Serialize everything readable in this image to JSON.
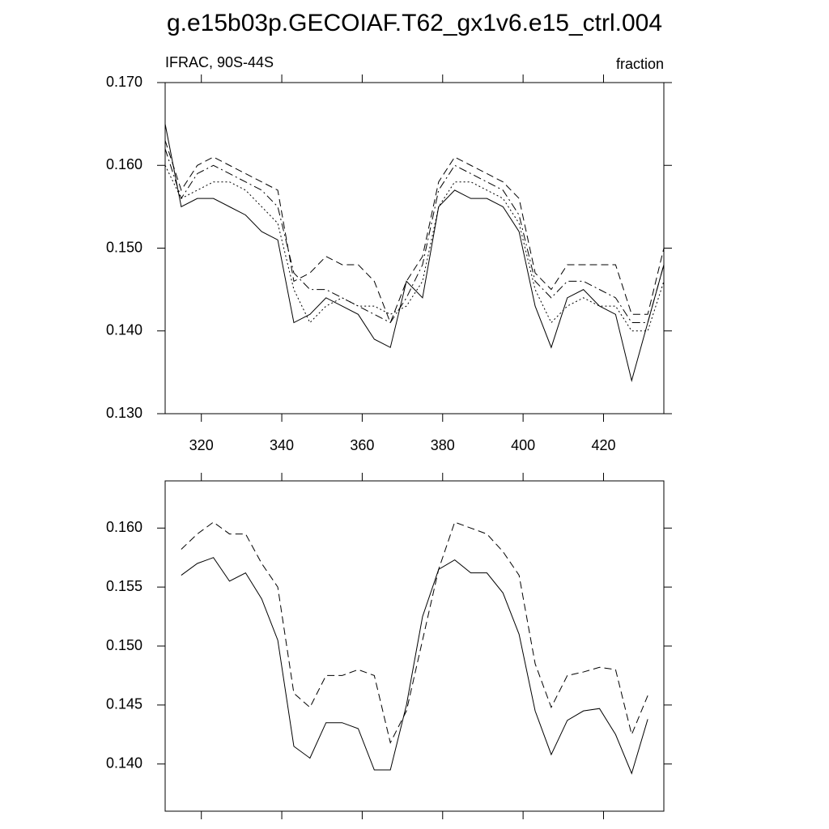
{
  "chart_data": [
    {
      "type": "line",
      "title": "g.e15b03p.GECOIAF.T62_gx1v6.e15_ctrl.004",
      "left_label": "IFRAC, 90S-44S",
      "right_label": "fraction",
      "x": [
        311,
        315,
        319,
        323,
        327,
        331,
        335,
        339,
        343,
        347,
        351,
        355,
        359,
        363,
        367,
        371,
        375,
        379,
        383,
        387,
        391,
        395,
        399,
        403,
        407,
        411,
        415,
        419,
        423,
        427,
        431,
        435
      ],
      "xlim": [
        311,
        435
      ],
      "xticks": [
        320,
        340,
        360,
        380,
        400,
        420
      ],
      "xtick_labels": true,
      "ylim": [
        0.13,
        0.17
      ],
      "yticks": [
        {
          "value": 0.13,
          "label": "0.130"
        },
        {
          "value": 0.14,
          "label": "0.140"
        },
        {
          "value": 0.15,
          "label": "0.150"
        },
        {
          "value": 0.16,
          "label": "0.160"
        },
        {
          "value": 0.17,
          "label": "0.170"
        }
      ],
      "series": [
        {
          "color": "#000000",
          "dash": "solid",
          "values": [
            0.165,
            0.155,
            0.156,
            0.156,
            0.155,
            0.154,
            0.152,
            0.151,
            0.141,
            0.142,
            0.144,
            0.143,
            0.142,
            0.139,
            0.138,
            0.146,
            0.144,
            0.155,
            0.157,
            0.156,
            0.156,
            0.155,
            0.152,
            0.143,
            0.138,
            0.144,
            0.145,
            0.143,
            0.142,
            0.134,
            0.141,
            0.148
          ]
        },
        {
          "color": "#000000",
          "dash": "dashed",
          "values": [
            0.163,
            0.157,
            0.16,
            0.161,
            0.16,
            0.159,
            0.158,
            0.157,
            0.146,
            0.147,
            0.149,
            0.148,
            0.148,
            0.146,
            0.141,
            0.146,
            0.149,
            0.158,
            0.161,
            0.16,
            0.159,
            0.158,
            0.156,
            0.147,
            0.145,
            0.148,
            0.148,
            0.148,
            0.148,
            0.142,
            0.142,
            0.15
          ]
        },
        {
          "color": "#000000",
          "dash": "dashdot",
          "values": [
            0.162,
            0.156,
            0.159,
            0.16,
            0.159,
            0.158,
            0.157,
            0.155,
            0.147,
            0.145,
            0.145,
            0.144,
            0.143,
            0.142,
            0.141,
            0.144,
            0.148,
            0.157,
            0.16,
            0.159,
            0.158,
            0.157,
            0.154,
            0.146,
            0.144,
            0.146,
            0.146,
            0.145,
            0.144,
            0.141,
            0.141,
            0.148
          ]
        },
        {
          "color": "#000000",
          "dash": "dotted",
          "values": [
            0.16,
            0.156,
            0.157,
            0.158,
            0.158,
            0.157,
            0.155,
            0.153,
            0.145,
            0.141,
            0.143,
            0.144,
            0.143,
            0.143,
            0.142,
            0.143,
            0.146,
            0.155,
            0.158,
            0.158,
            0.157,
            0.156,
            0.153,
            0.145,
            0.141,
            0.143,
            0.144,
            0.143,
            0.143,
            0.14,
            0.14,
            0.146
          ]
        }
      ]
    },
    {
      "type": "line",
      "x": [
        315,
        319,
        323,
        327,
        331,
        335,
        339,
        343,
        347,
        351,
        355,
        359,
        363,
        367,
        371,
        375,
        379,
        383,
        387,
        391,
        395,
        399,
        403,
        407,
        411,
        415,
        419,
        423,
        427,
        431
      ],
      "xlim": [
        311,
        435
      ],
      "xticks": [
        320,
        340,
        360,
        380,
        400,
        420
      ],
      "xtick_labels": false,
      "ylim": [
        0.136,
        0.164
      ],
      "yticks": [
        {
          "value": 0.14,
          "label": "0.140"
        },
        {
          "value": 0.145,
          "label": "0.145"
        },
        {
          "value": 0.15,
          "label": "0.150"
        },
        {
          "value": 0.155,
          "label": "0.155"
        },
        {
          "value": 0.16,
          "label": "0.160"
        }
      ],
      "series": [
        {
          "color": "#000000",
          "dash": "solid",
          "values": [
            0.156,
            0.157,
            0.1575,
            0.1555,
            0.1562,
            0.154,
            0.1505,
            0.1415,
            0.1405,
            0.1435,
            0.1435,
            0.143,
            0.1395,
            0.1395,
            0.145,
            0.1525,
            0.1565,
            0.1573,
            0.1562,
            0.1562,
            0.1545,
            0.151,
            0.1445,
            0.1408,
            0.1437,
            0.1445,
            0.1447,
            0.1425,
            0.1392,
            0.1438
          ]
        },
        {
          "color": "#000000",
          "dash": "dashed",
          "values": [
            0.1582,
            0.1595,
            0.1605,
            0.1595,
            0.1595,
            0.157,
            0.155,
            0.146,
            0.1448,
            0.1475,
            0.1475,
            0.148,
            0.1475,
            0.1418,
            0.1445,
            0.1505,
            0.1565,
            0.1605,
            0.16,
            0.1595,
            0.158,
            0.156,
            0.1485,
            0.1448,
            0.1475,
            0.1478,
            0.1482,
            0.148,
            0.1425,
            0.1458
          ]
        }
      ]
    }
  ]
}
